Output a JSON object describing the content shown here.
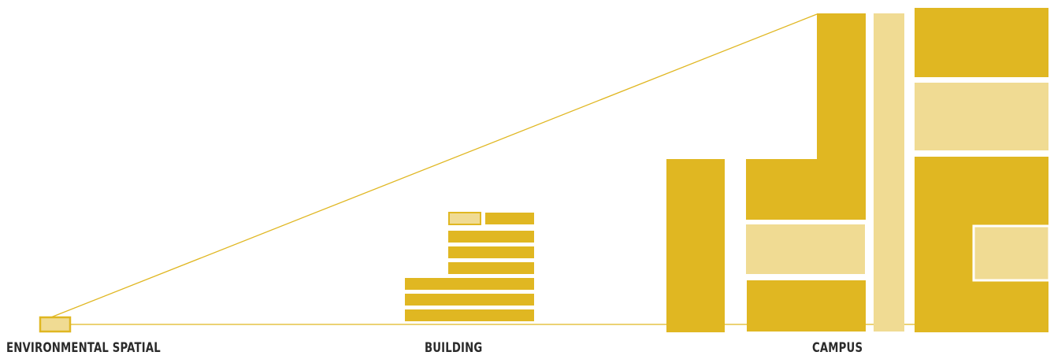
{
  "labels": {
    "environmental": "ENVIRONMENTAL SPATIAL",
    "building": "BUILDING",
    "campus": "CAMPUS"
  },
  "colors": {
    "dark": "#E0B722",
    "light": "#F0DB93",
    "line": "#E0B722",
    "text": "#2b2b2b",
    "background": "#ffffff"
  }
}
